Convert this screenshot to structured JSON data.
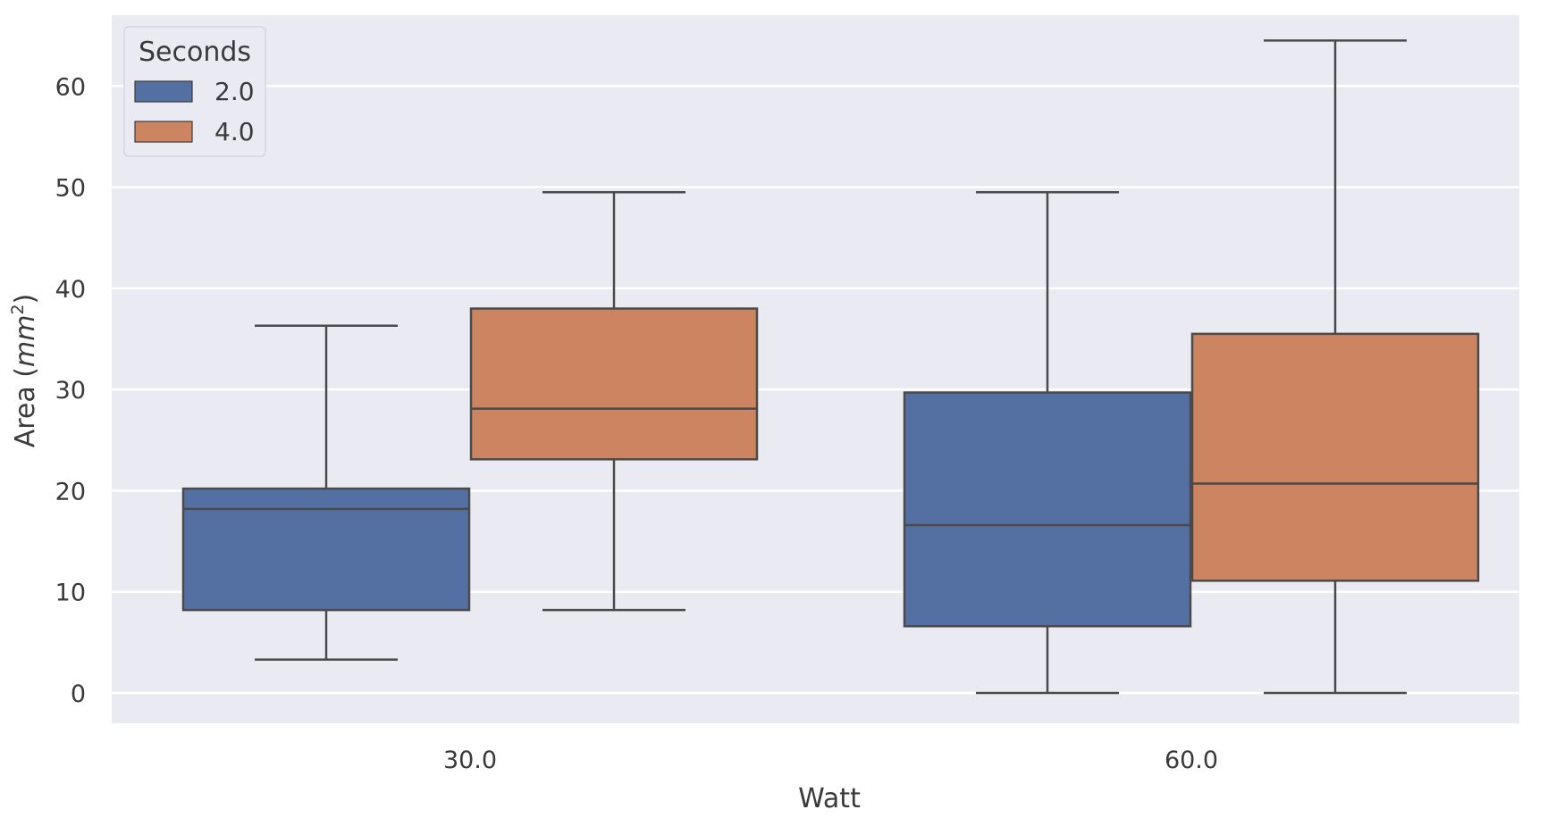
{
  "chart_data": {
    "type": "box",
    "xlabel": "Watt",
    "ylabel_prefix": "Area (",
    "ylabel_unit": "mm",
    "ylabel_exp": "2",
    "ylabel_suffix": ")",
    "categories": [
      "30.0",
      "60.0"
    ],
    "yticks": [
      "0",
      "10",
      "20",
      "30",
      "40",
      "50",
      "60"
    ],
    "ylim": [
      -3,
      67
    ],
    "grid": true,
    "legend": {
      "title": "Seconds",
      "placement": "top-left"
    },
    "series": [
      {
        "name": "2.0",
        "color": "#5470a3",
        "boxes": [
          {
            "whisker_low": 3.3,
            "q1": 8.2,
            "median": 18.2,
            "q3": 20.2,
            "whisker_high": 36.3
          },
          {
            "whisker_low": 0,
            "q1": 6.6,
            "median": 16.6,
            "q3": 29.7,
            "whisker_high": 49.5
          }
        ]
      },
      {
        "name": "4.0",
        "color": "#cc8560",
        "boxes": [
          {
            "whisker_low": 8.2,
            "q1": 23.1,
            "median": 28.1,
            "q3": 38.0,
            "whisker_high": 49.5
          },
          {
            "whisker_low": 0,
            "q1": 11.1,
            "median": 20.7,
            "q3": 35.5,
            "whisker_high": 64.5
          }
        ]
      }
    ]
  }
}
